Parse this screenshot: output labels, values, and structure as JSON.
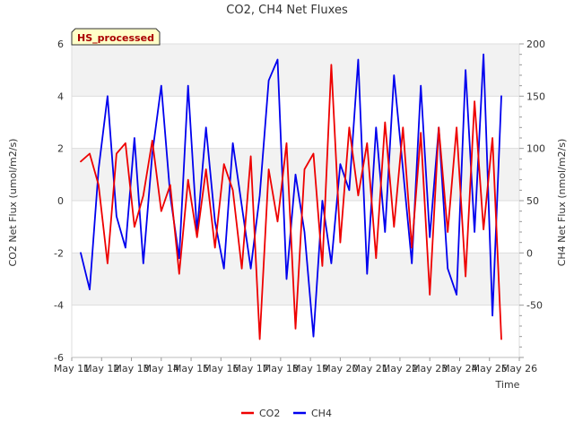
{
  "chart_data": {
    "type": "line",
    "title": "CO2, CH4 Net Fluxes",
    "xlabel": "Time",
    "ylabel_left": "CO2 Net Flux (umol/m2/s)",
    "ylabel_right": "CH4 Net Flux (nmol/m2/s)",
    "badge": "HS_processed",
    "x_ticks": [
      "May 11",
      "May 12",
      "May 13",
      "May 14",
      "May 15",
      "May 16",
      "May 17",
      "May 18",
      "May 19",
      "May 20",
      "May 21",
      "May 22",
      "May 23",
      "May 24",
      "May 25",
      "May 26"
    ],
    "xlim": [
      0,
      15
    ],
    "ylim_left": [
      -6,
      6
    ],
    "ylim_right": [
      -100,
      200
    ],
    "y_ticks_left": [
      "-6",
      "-4",
      "-2",
      "0",
      "2",
      "4",
      "6"
    ],
    "y_ticks_right": [
      "-50",
      "0",
      "50",
      "100",
      "150",
      "200"
    ],
    "grid": true,
    "legend_position": "bottom-center",
    "series": [
      {
        "name": "CO2",
        "axis": "left",
        "color": "#ee0000",
        "x": [
          0.3,
          0.6,
          0.9,
          1.2,
          1.5,
          1.8,
          2.1,
          2.4,
          2.7,
          3.0,
          3.3,
          3.6,
          3.9,
          4.2,
          4.5,
          4.8,
          5.1,
          5.4,
          5.7,
          6.0,
          6.3,
          6.6,
          6.9,
          7.2,
          7.5,
          7.8,
          8.1,
          8.4,
          8.7,
          9.0,
          9.3,
          9.6,
          9.9,
          10.2,
          10.5,
          10.8,
          11.1,
          11.4,
          11.7,
          12.0,
          12.3,
          12.6,
          12.9,
          13.2,
          13.5,
          13.8,
          14.1,
          14.4
        ],
        "y": [
          1.5,
          1.8,
          0.6,
          -2.4,
          1.8,
          2.2,
          -1.0,
          0.2,
          2.3,
          -0.4,
          0.6,
          -2.8,
          0.8,
          -1.4,
          1.2,
          -1.8,
          1.4,
          0.4,
          -2.6,
          1.7,
          -5.3,
          1.2,
          -0.8,
          2.2,
          -4.9,
          1.2,
          1.8,
          -2.5,
          5.2,
          -1.6,
          2.8,
          0.2,
          2.2,
          -2.2,
          3.0,
          -1.0,
          2.8,
          -1.8,
          2.6,
          -3.6,
          2.8,
          -1.2,
          2.8,
          -2.9,
          3.8,
          -1.1,
          2.4,
          -5.3
        ]
      },
      {
        "name": "CH4",
        "axis": "right",
        "color": "#0000ee",
        "x": [
          0.3,
          0.6,
          0.9,
          1.2,
          1.5,
          1.8,
          2.1,
          2.4,
          2.7,
          3.0,
          3.3,
          3.6,
          3.9,
          4.2,
          4.5,
          4.8,
          5.1,
          5.4,
          5.7,
          6.0,
          6.3,
          6.6,
          6.9,
          7.2,
          7.5,
          7.8,
          8.1,
          8.4,
          8.7,
          9.0,
          9.3,
          9.6,
          9.9,
          10.2,
          10.5,
          10.8,
          11.1,
          11.4,
          11.7,
          12.0,
          12.3,
          12.6,
          12.9,
          13.2,
          13.5,
          13.8,
          14.1,
          14.4
        ],
        "y": [
          0,
          -35,
          80,
          150,
          35,
          5,
          110,
          -10,
          95,
          160,
          55,
          -5,
          160,
          20,
          120,
          30,
          -15,
          105,
          45,
          -15,
          55,
          165,
          185,
          -25,
          75,
          20,
          -80,
          50,
          -10,
          85,
          60,
          185,
          -20,
          120,
          20,
          170,
          80,
          -10,
          160,
          15,
          120,
          -15,
          -40,
          175,
          20,
          190,
          -60,
          150
        ]
      }
    ]
  }
}
